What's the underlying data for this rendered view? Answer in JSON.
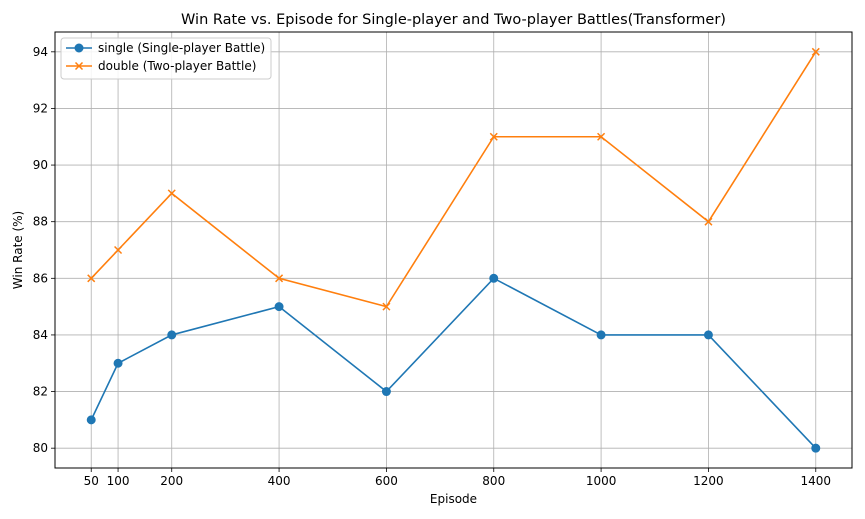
{
  "chart_data": {
    "type": "line",
    "title": "Win Rate vs. Episode for Single-player and Two-player Battles(Transformer)",
    "xlabel": "Episode",
    "ylabel": "Win Rate (%)",
    "x": [
      50,
      100,
      200,
      400,
      600,
      800,
      1000,
      1200,
      1400
    ],
    "xticks": [
      50,
      100,
      200,
      400,
      600,
      800,
      1000,
      1200,
      1400
    ],
    "yticks": [
      80,
      82,
      84,
      86,
      88,
      90,
      92,
      94
    ],
    "xlim": [
      -17.5,
      1467.5
    ],
    "ylim": [
      79.3,
      94.7
    ],
    "grid": true,
    "legend_position": "upper left",
    "series": [
      {
        "name": "single (Single-player Battle)",
        "values": [
          81,
          83,
          84,
          85,
          82,
          86,
          84,
          84,
          80
        ],
        "color": "#1f77b4",
        "marker": "circle"
      },
      {
        "name": "double (Two-player Battle)",
        "values": [
          86,
          87,
          89,
          86,
          85,
          91,
          91,
          88,
          94
        ],
        "color": "#ff7f0e",
        "marker": "x"
      }
    ]
  }
}
